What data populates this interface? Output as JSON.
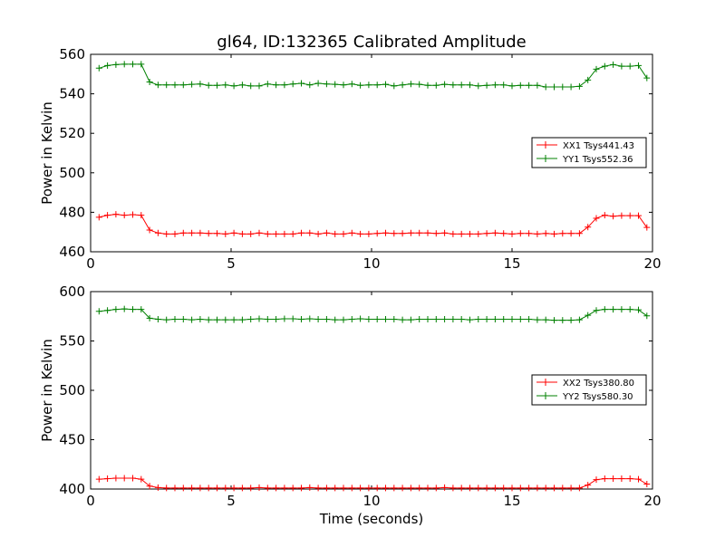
{
  "chart_data": [
    {
      "type": "line",
      "title": "gl64, ID:132365 Calibrated Amplitude",
      "xlabel": "",
      "ylabel": "Power in Kelvin",
      "xlim": [
        0,
        20
      ],
      "ylim": [
        460,
        560
      ],
      "xticks": [
        "0",
        "5",
        "10",
        "15",
        "20"
      ],
      "yticks": [
        "460",
        "480",
        "500",
        "520",
        "540",
        "560"
      ],
      "legend_position": "right",
      "series": [
        {
          "name": "XX1 Tsys441.43",
          "color": "#ff0000",
          "x": [
            0.3,
            0.6,
            0.9,
            1.2,
            1.5,
            1.8,
            2.1,
            2.4,
            2.7,
            3.0,
            3.3,
            3.6,
            3.9,
            4.2,
            4.5,
            4.8,
            5.1,
            5.4,
            5.7,
            6.0,
            6.3,
            6.6,
            6.9,
            7.2,
            7.5,
            7.8,
            8.1,
            8.4,
            8.7,
            9.0,
            9.3,
            9.6,
            9.9,
            10.2,
            10.5,
            10.8,
            11.1,
            11.4,
            11.7,
            12.0,
            12.3,
            12.6,
            12.9,
            13.2,
            13.5,
            13.8,
            14.1,
            14.4,
            14.7,
            15.0,
            15.3,
            15.6,
            15.9,
            16.2,
            16.5,
            16.8,
            17.1,
            17.4,
            17.7,
            18.0,
            18.3,
            18.6,
            18.9,
            19.2,
            19.5,
            19.8
          ],
          "y": [
            477.5,
            478.5,
            479.0,
            478.5,
            478.8,
            478.5,
            471.0,
            469.5,
            469.0,
            469.0,
            469.5,
            469.5,
            469.5,
            469.3,
            469.3,
            469.0,
            469.5,
            469.0,
            469.0,
            469.5,
            469.0,
            469.0,
            469.0,
            469.0,
            469.5,
            469.5,
            469.0,
            469.5,
            469.0,
            469.0,
            469.5,
            469.0,
            469.0,
            469.3,
            469.5,
            469.3,
            469.3,
            469.5,
            469.5,
            469.5,
            469.3,
            469.5,
            469.0,
            469.0,
            469.0,
            469.0,
            469.3,
            469.5,
            469.3,
            469.0,
            469.3,
            469.3,
            469.0,
            469.3,
            469.0,
            469.3,
            469.3,
            469.3,
            472.5,
            477.0,
            478.5,
            478.0,
            478.3,
            478.3,
            478.3,
            472.3
          ]
        },
        {
          "name": "YY1 Tsys552.36",
          "color": "#008000",
          "x": [
            0.3,
            0.6,
            0.9,
            1.2,
            1.5,
            1.8,
            2.1,
            2.4,
            2.7,
            3.0,
            3.3,
            3.6,
            3.9,
            4.2,
            4.5,
            4.8,
            5.1,
            5.4,
            5.7,
            6.0,
            6.3,
            6.6,
            6.9,
            7.2,
            7.5,
            7.8,
            8.1,
            8.4,
            8.7,
            9.0,
            9.3,
            9.6,
            9.9,
            10.2,
            10.5,
            10.8,
            11.1,
            11.4,
            11.7,
            12.0,
            12.3,
            12.6,
            12.9,
            13.2,
            13.5,
            13.8,
            14.1,
            14.4,
            14.7,
            15.0,
            15.3,
            15.6,
            15.9,
            16.2,
            16.5,
            16.8,
            17.1,
            17.4,
            17.7,
            18.0,
            18.3,
            18.6,
            18.9,
            19.2,
            19.5,
            19.8
          ],
          "y": [
            553.0,
            554.3,
            554.8,
            555.0,
            555.0,
            555.0,
            546.0,
            544.5,
            544.5,
            544.5,
            544.5,
            544.8,
            545.0,
            544.3,
            544.3,
            544.5,
            544.0,
            544.5,
            544.0,
            544.0,
            545.0,
            544.5,
            544.5,
            545.0,
            545.3,
            544.5,
            545.3,
            545.0,
            544.8,
            544.5,
            545.0,
            544.3,
            544.5,
            544.5,
            544.8,
            544.0,
            544.5,
            545.0,
            544.8,
            544.3,
            544.3,
            544.8,
            544.5,
            544.5,
            544.5,
            544.0,
            544.3,
            544.5,
            544.5,
            544.0,
            544.3,
            544.3,
            544.3,
            543.5,
            543.5,
            543.5,
            543.5,
            543.8,
            547.0,
            552.5,
            554.0,
            554.8,
            554.0,
            554.0,
            554.3,
            548.0
          ]
        }
      ]
    },
    {
      "type": "line",
      "title": "",
      "xlabel": "Time (seconds)",
      "ylabel": "Power in Kelvin",
      "xlim": [
        0,
        20
      ],
      "ylim": [
        400,
        600
      ],
      "xticks": [
        "0",
        "5",
        "10",
        "15",
        "20"
      ],
      "yticks": [
        "400",
        "450",
        "500",
        "550",
        "600"
      ],
      "legend_position": "right",
      "series": [
        {
          "name": "XX2 Tsys380.80",
          "color": "#ff0000",
          "x": [
            0.3,
            0.6,
            0.9,
            1.2,
            1.5,
            1.8,
            2.1,
            2.4,
            2.7,
            3.0,
            3.3,
            3.6,
            3.9,
            4.2,
            4.5,
            4.8,
            5.1,
            5.4,
            5.7,
            6.0,
            6.3,
            6.6,
            6.9,
            7.2,
            7.5,
            7.8,
            8.1,
            8.4,
            8.7,
            9.0,
            9.3,
            9.6,
            9.9,
            10.2,
            10.5,
            10.8,
            11.1,
            11.4,
            11.7,
            12.0,
            12.3,
            12.6,
            12.9,
            13.2,
            13.5,
            13.8,
            14.1,
            14.4,
            14.7,
            15.0,
            15.3,
            15.6,
            15.9,
            16.2,
            16.5,
            16.8,
            17.1,
            17.4,
            17.7,
            18.0,
            18.3,
            18.6,
            18.9,
            19.2,
            19.5,
            19.8
          ],
          "y": [
            410,
            410.5,
            411,
            411,
            411,
            410,
            403,
            401.5,
            401,
            401,
            401,
            401,
            401,
            401,
            401,
            401,
            401,
            401,
            401,
            401.5,
            401,
            401,
            401,
            401,
            401,
            401.5,
            401,
            401,
            401,
            401,
            401,
            401,
            401,
            401,
            401,
            401,
            401,
            401,
            401,
            401,
            401,
            401.5,
            401,
            401,
            401,
            401,
            401,
            401,
            401,
            401,
            401,
            401,
            401,
            401,
            401,
            401,
            401,
            401,
            404,
            409.5,
            410.5,
            410.5,
            410.5,
            410.5,
            410,
            405
          ]
        },
        {
          "name": "YY2 Tsys580.30",
          "color": "#008000",
          "x": [
            0.3,
            0.6,
            0.9,
            1.2,
            1.5,
            1.8,
            2.1,
            2.4,
            2.7,
            3.0,
            3.3,
            3.6,
            3.9,
            4.2,
            4.5,
            4.8,
            5.1,
            5.4,
            5.7,
            6.0,
            6.3,
            6.6,
            6.9,
            7.2,
            7.5,
            7.8,
            8.1,
            8.4,
            8.7,
            9.0,
            9.3,
            9.6,
            9.9,
            10.2,
            10.5,
            10.8,
            11.1,
            11.4,
            11.7,
            12.0,
            12.3,
            12.6,
            12.9,
            13.2,
            13.5,
            13.8,
            14.1,
            14.4,
            14.7,
            15.0,
            15.3,
            15.6,
            15.9,
            16.2,
            16.5,
            16.8,
            17.1,
            17.4,
            17.7,
            18.0,
            18.3,
            18.6,
            18.9,
            19.2,
            19.5,
            19.8
          ],
          "y": [
            580,
            581,
            582,
            582.5,
            582,
            582,
            573,
            572,
            571.5,
            572,
            572,
            571.5,
            572,
            571.5,
            571.5,
            571.5,
            571.5,
            571.5,
            572,
            572.5,
            572,
            572,
            572.5,
            572.5,
            572,
            572.5,
            572,
            572,
            571.5,
            571.5,
            572,
            572.5,
            572,
            572,
            572,
            572,
            571.5,
            571.5,
            572,
            572,
            572,
            572,
            572,
            572,
            571.5,
            572,
            572,
            572,
            572,
            572,
            572,
            572,
            571.5,
            571.5,
            571,
            571,
            571,
            571.5,
            576,
            581,
            582,
            582,
            582,
            582,
            581.5,
            575.5
          ]
        }
      ]
    }
  ]
}
